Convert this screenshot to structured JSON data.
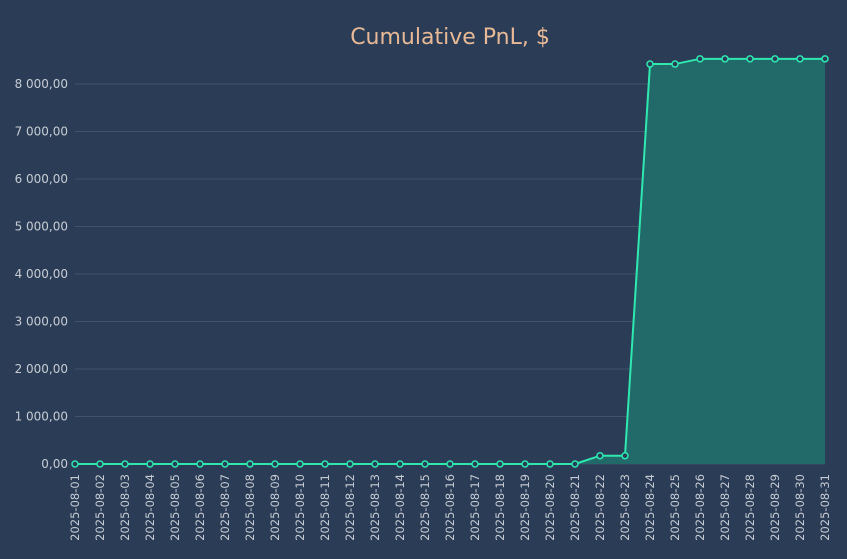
{
  "colors": {
    "background": "#2b3d56",
    "title": "#e8b996",
    "tick_text": "#c7ccd4",
    "grid": "#41536b",
    "line": "#2ee8b0",
    "area": "#226a6a",
    "marker_fill": "#2b3d56"
  },
  "chart_data": {
    "type": "area",
    "title": "Cumulative PnL, $",
    "xlabel": "",
    "ylabel": "",
    "ylim": [
      0,
      8600
    ],
    "yticks": [
      0,
      1000,
      2000,
      3000,
      4000,
      5000,
      6000,
      7000,
      8000
    ],
    "ytick_labels": [
      "0,00",
      "1 000,00",
      "2 000,00",
      "3 000,00",
      "4 000,00",
      "5 000,00",
      "6 000,00",
      "7 000,00",
      "8 000,00"
    ],
    "grid": true,
    "legend": "none",
    "x": [
      "2025-08-01",
      "2025-08-02",
      "2025-08-03",
      "2025-08-04",
      "2025-08-05",
      "2025-08-06",
      "2025-08-07",
      "2025-08-08",
      "2025-08-09",
      "2025-08-10",
      "2025-08-11",
      "2025-08-12",
      "2025-08-13",
      "2025-08-14",
      "2025-08-15",
      "2025-08-16",
      "2025-08-17",
      "2025-08-18",
      "2025-08-19",
      "2025-08-20",
      "2025-08-21",
      "2025-08-22",
      "2025-08-23",
      "2025-08-24",
      "2025-08-25",
      "2025-08-26",
      "2025-08-27",
      "2025-08-28",
      "2025-08-29",
      "2025-08-30",
      "2025-08-31"
    ],
    "series": [
      {
        "values": [
          0,
          0,
          0,
          0,
          0,
          0,
          0,
          0,
          0,
          0,
          0,
          0,
          0,
          0,
          0,
          0,
          0,
          0,
          0,
          0,
          0,
          175,
          175,
          8420,
          8420,
          8530,
          8530,
          8530,
          8530,
          8530,
          8530
        ]
      }
    ]
  }
}
